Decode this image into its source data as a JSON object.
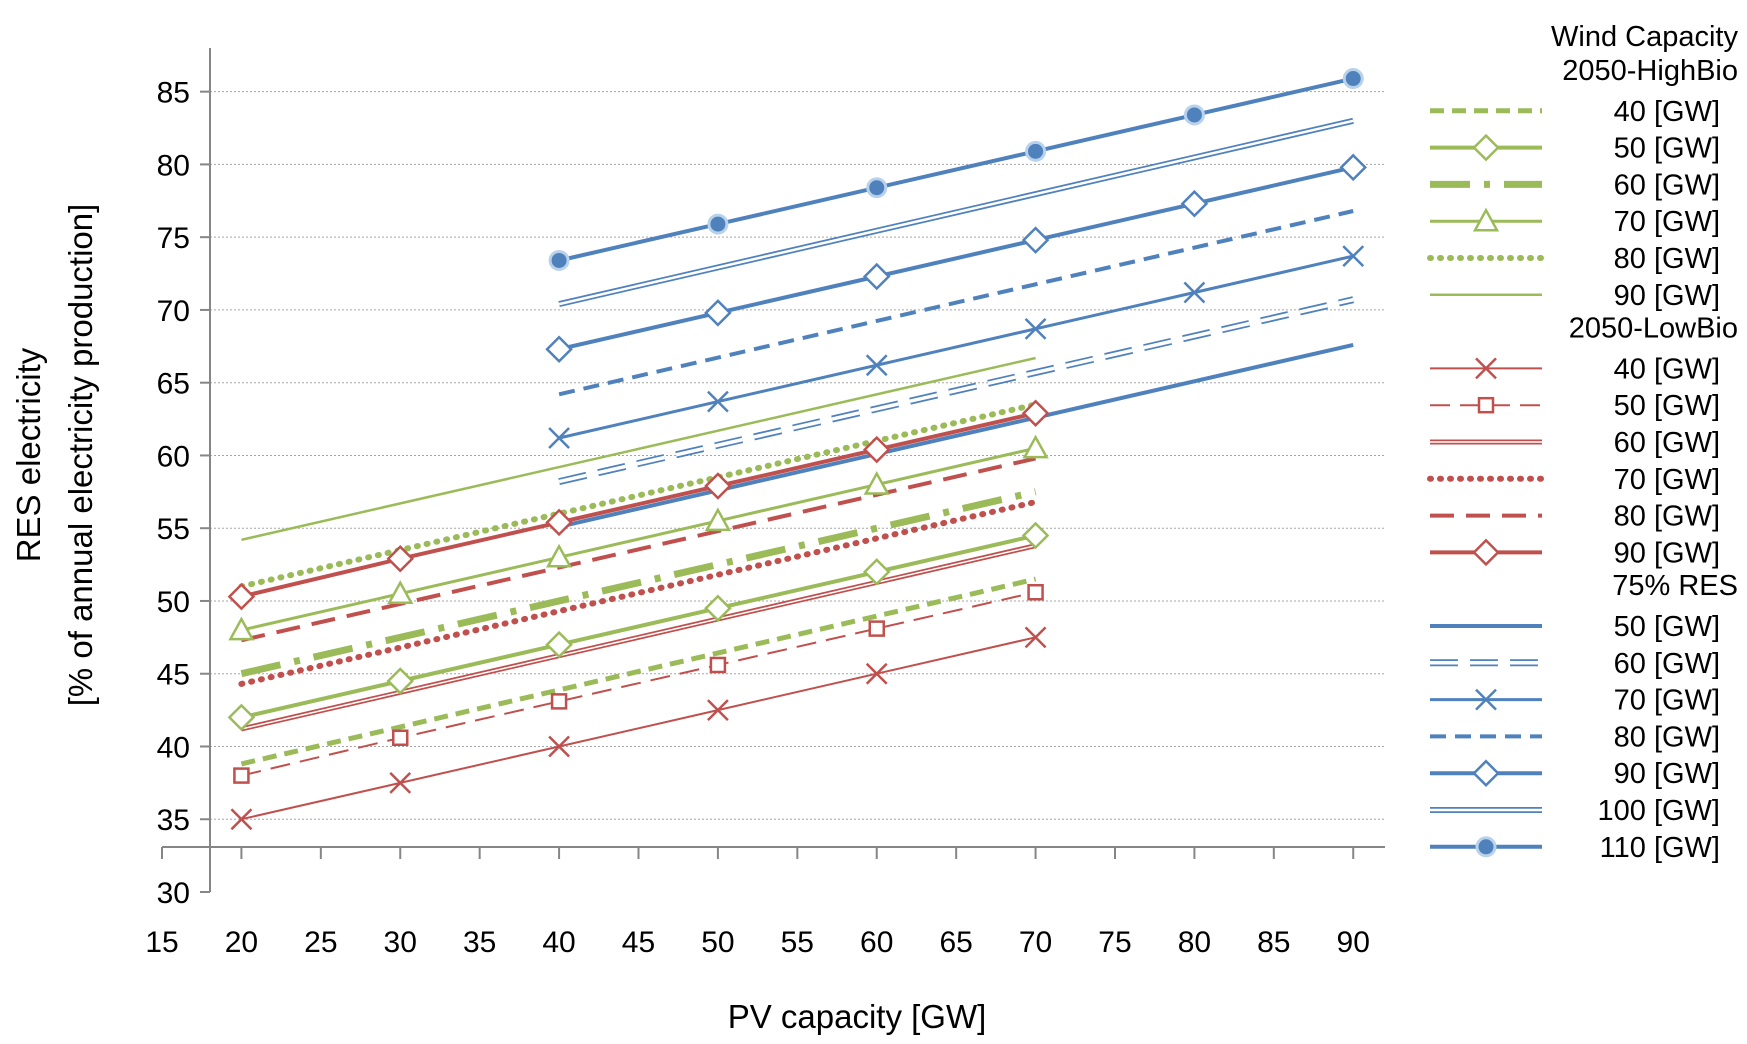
{
  "chart_data": {
    "type": "line",
    "title": "",
    "xlabel": "PV capacity [GW]",
    "ylabel": "RES electricity",
    "ylabel2": "[% of annual electricity production]",
    "xlim": [
      15,
      92
    ],
    "ylim": [
      30,
      88
    ],
    "x_ticks": [
      15,
      20,
      25,
      30,
      35,
      40,
      45,
      50,
      55,
      60,
      65,
      70,
      75,
      80,
      85,
      90
    ],
    "y_ticks": [
      30,
      35,
      40,
      45,
      50,
      55,
      60,
      65,
      70,
      75,
      80,
      85
    ],
    "grid": "horizontal",
    "legend_position": "right",
    "legend_title": "Wind Capacity",
    "groups": [
      "2050-HighBio",
      "2050-LowBio",
      "75% RES"
    ],
    "series": [
      {
        "group": "2050-HighBio",
        "name": "40 [GW]",
        "color": "#9bbb59",
        "dash": "14 8",
        "width": 5,
        "marker": "none",
        "x": [
          20,
          70
        ],
        "y": [
          38.8,
          51.5
        ]
      },
      {
        "group": "2050-HighBio",
        "name": "50 [GW]",
        "color": "#9bbb59",
        "dash": "",
        "width": 4,
        "marker": "diamond",
        "x": [
          20,
          30,
          40,
          50,
          60,
          70
        ],
        "y": [
          42.0,
          44.5,
          47.0,
          49.5,
          52.0,
          54.5
        ]
      },
      {
        "group": "2050-HighBio",
        "name": "60 [GW]",
        "color": "#9bbb59",
        "dash": "40 14 6 14",
        "width": 7,
        "marker": "none",
        "x": [
          20,
          70
        ],
        "y": [
          45.0,
          57.5
        ]
      },
      {
        "group": "2050-HighBio",
        "name": "70 [GW]",
        "color": "#9bbb59",
        "dash": "",
        "width": 3,
        "marker": "triangle",
        "x": [
          20,
          30,
          40,
          50,
          60,
          70
        ],
        "y": [
          48.0,
          50.5,
          53.0,
          55.5,
          58.0,
          60.5
        ]
      },
      {
        "group": "2050-HighBio",
        "name": "80 [GW]",
        "color": "#9bbb59",
        "dash": "1 9",
        "width": 6,
        "marker": "none",
        "x": [
          20,
          70
        ],
        "y": [
          51.0,
          63.5
        ]
      },
      {
        "group": "2050-HighBio",
        "name": "90 [GW]",
        "color": "#9bbb59",
        "dash": "",
        "width": 2.5,
        "marker": "none",
        "x": [
          20,
          70
        ],
        "y": [
          54.2,
          66.7
        ]
      },
      {
        "group": "2050-LowBio",
        "name": "40 [GW]",
        "color": "#c0504d",
        "dash": "",
        "width": 2,
        "marker": "x",
        "x": [
          20,
          30,
          40,
          50,
          60,
          70
        ],
        "y": [
          35.0,
          37.5,
          40.0,
          42.5,
          45.0,
          47.5
        ]
      },
      {
        "group": "2050-LowBio",
        "name": "50 [GW]",
        "color": "#c0504d",
        "dash": "20 10",
        "width": 2,
        "marker": "square",
        "x": [
          20,
          30,
          40,
          50,
          60,
          70
        ],
        "y": [
          38.0,
          40.6,
          43.1,
          45.6,
          48.1,
          50.6
        ]
      },
      {
        "group": "2050-LowBio",
        "name": "60 [GW]",
        "color": "#c0504d",
        "dash": "",
        "width": 5,
        "marker": "none",
        "double": true,
        "x": [
          20,
          70
        ],
        "y": [
          41.2,
          53.8
        ]
      },
      {
        "group": "2050-LowBio",
        "name": "70 [GW]",
        "color": "#c0504d",
        "dash": "1 9",
        "width": 6,
        "marker": "none",
        "x": [
          20,
          70
        ],
        "y": [
          44.3,
          56.8
        ]
      },
      {
        "group": "2050-LowBio",
        "name": "80 [GW]",
        "color": "#c0504d",
        "dash": "24 12",
        "width": 4,
        "marker": "none",
        "x": [
          20,
          70
        ],
        "y": [
          47.3,
          59.8
        ]
      },
      {
        "group": "2050-LowBio",
        "name": "90 [GW]",
        "color": "#c0504d",
        "dash": "",
        "width": 4,
        "marker": "diamond",
        "x": [
          20,
          30,
          40,
          50,
          60,
          70
        ],
        "y": [
          50.3,
          52.9,
          55.4,
          57.9,
          60.4,
          62.9
        ]
      },
      {
        "group": "75% RES",
        "name": "50 [GW]",
        "color": "#4f81bd",
        "dash": "",
        "width": 4,
        "marker": "none",
        "x": [
          40,
          90
        ],
        "y": [
          55.1,
          67.6
        ]
      },
      {
        "group": "75% RES",
        "name": "60 [GW]",
        "color": "#4f81bd",
        "dash": "28 12",
        "width": 7,
        "marker": "none",
        "double": true,
        "x": [
          40,
          90
        ],
        "y": [
          58.2,
          70.7
        ]
      },
      {
        "group": "75% RES",
        "name": "70 [GW]",
        "color": "#4f81bd",
        "dash": "",
        "width": 3,
        "marker": "x",
        "x": [
          40,
          50,
          60,
          70,
          80,
          90
        ],
        "y": [
          61.2,
          63.7,
          66.2,
          68.7,
          71.2,
          73.7
        ]
      },
      {
        "group": "75% RES",
        "name": "80 [GW]",
        "color": "#4f81bd",
        "dash": "16 9",
        "width": 4,
        "marker": "none",
        "x": [
          40,
          90
        ],
        "y": [
          64.2,
          76.8
        ]
      },
      {
        "group": "75% RES",
        "name": "90 [GW]",
        "color": "#4f81bd",
        "dash": "",
        "width": 4,
        "marker": "diamond",
        "x": [
          40,
          50,
          60,
          70,
          80,
          90
        ],
        "y": [
          67.3,
          69.8,
          72.3,
          74.8,
          77.3,
          79.8
        ]
      },
      {
        "group": "75% RES",
        "name": "100 [GW]",
        "color": "#4f81bd",
        "dash": "",
        "width": 6,
        "marker": "none",
        "double": true,
        "x": [
          40,
          90
        ],
        "y": [
          70.4,
          83.0
        ]
      },
      {
        "group": "75% RES",
        "name": "110 [GW]",
        "color": "#4f81bd",
        "dash": "",
        "width": 4,
        "marker": "circle",
        "x": [
          40,
          50,
          60,
          70,
          80,
          90
        ],
        "y": [
          73.4,
          75.9,
          78.4,
          80.9,
          83.4,
          85.9
        ]
      }
    ]
  }
}
